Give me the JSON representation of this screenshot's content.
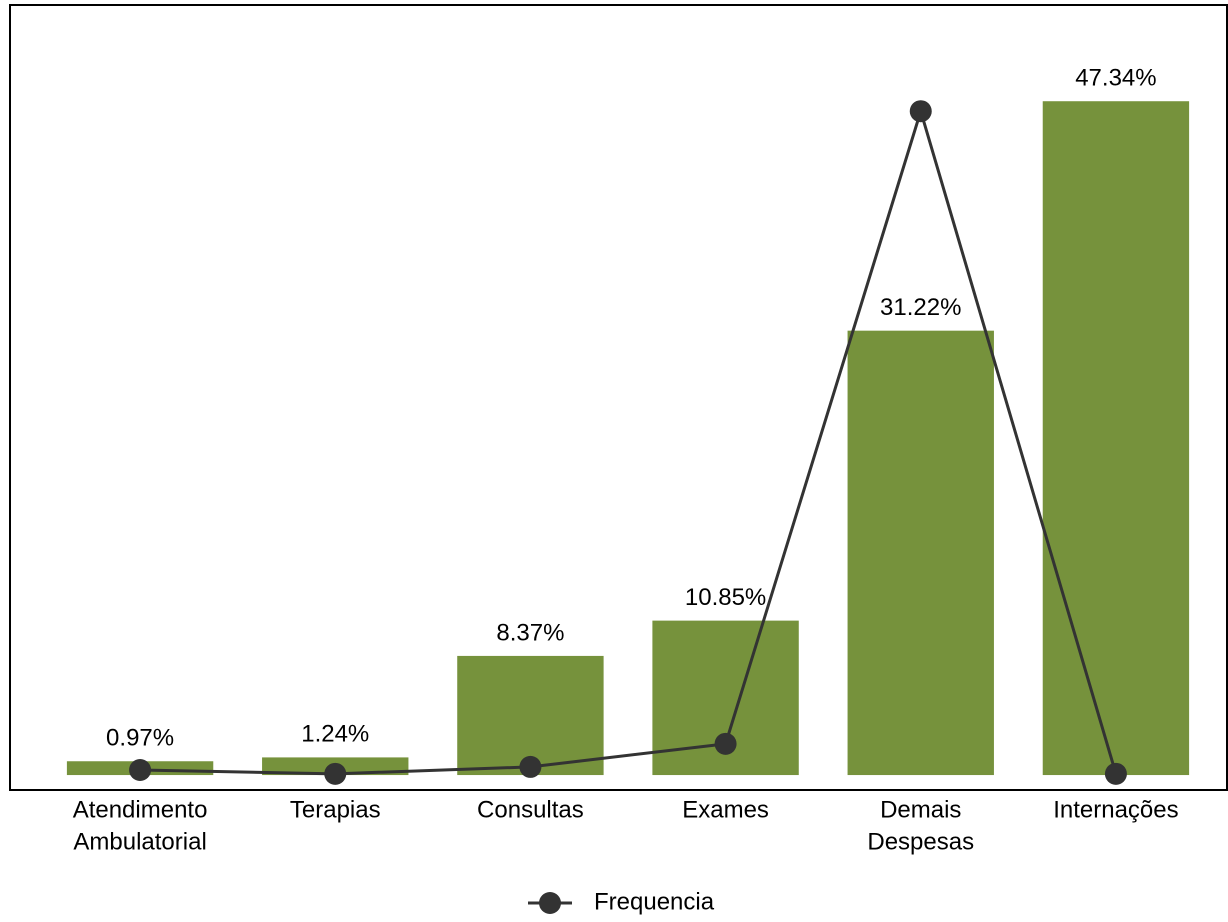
{
  "chart_data": {
    "type": "bar",
    "categories": [
      [
        "Atendimento",
        "Ambulatorial"
      ],
      [
        "Terapias"
      ],
      [
        "Consultas"
      ],
      [
        "Exames"
      ],
      [
        "Demais",
        "Despesas"
      ],
      [
        "Internações"
      ]
    ],
    "values": [
      0.97,
      1.24,
      8.37,
      10.85,
      31.22,
      47.34
    ],
    "value_labels": [
      "0.97%",
      "1.24%",
      "8.37%",
      "10.85%",
      "31.22%",
      "47.34%"
    ],
    "color": "#76923c",
    "ylim": [
      -1.05,
      54.1
    ],
    "y2lim": [
      -2,
      100
    ],
    "series": [
      {
        "name": "Frequencia",
        "type": "line",
        "axis": "y2",
        "color": "#333333",
        "values": [
          0.6,
          0.1,
          1.0,
          4.0,
          86.2,
          0.1
        ]
      }
    ],
    "legend": "bottom"
  }
}
